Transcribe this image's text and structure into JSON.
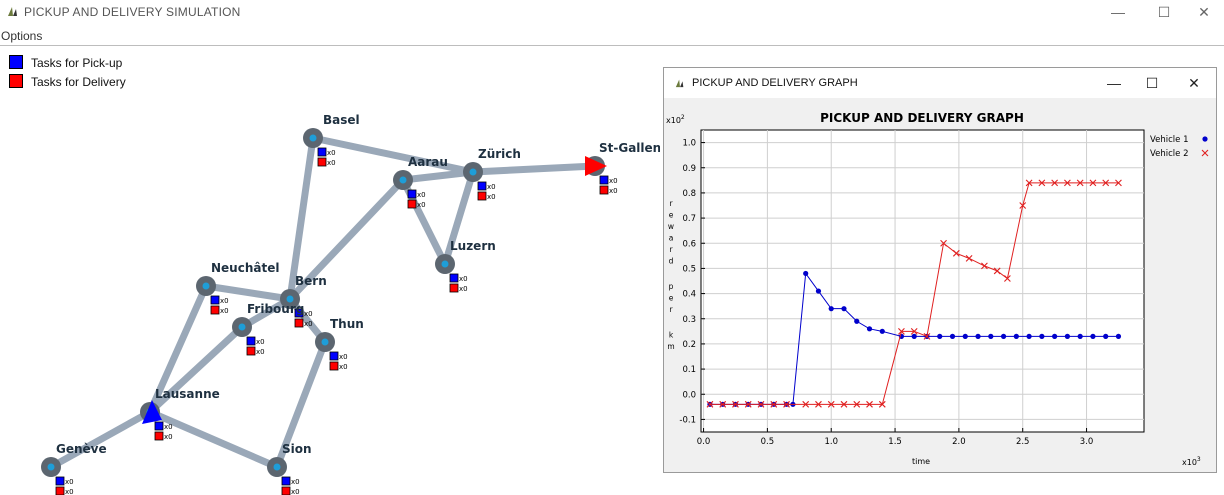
{
  "window": {
    "title": "PICKUP AND DELIVERY SIMULATION",
    "minimize_glyph": "—",
    "maximize_glyph": "☐",
    "close_glyph": "✕"
  },
  "menu": {
    "options_label": "Options"
  },
  "legend": {
    "pickup": {
      "label": "Tasks for Pick-up",
      "color": "#0000ff"
    },
    "delivery": {
      "label": "Tasks for Delivery",
      "color": "#ff0000"
    }
  },
  "map": {
    "colors": {
      "road": "#9aa8b8",
      "node": "#5c6670",
      "node_center": "#1e9ed8",
      "vehicle1": "#0000ff",
      "vehicle2": "#ff0000"
    },
    "cities": [
      {
        "name": "Basel",
        "count_pickup": "x0",
        "count_delivery": "x0"
      },
      {
        "name": "Zürich",
        "count_pickup": "x0",
        "count_delivery": "x0"
      },
      {
        "name": "Aarau",
        "count_pickup": "x0",
        "count_delivery": "x0"
      },
      {
        "name": "St-Gallen",
        "count_pickup": "x0",
        "count_delivery": "x0"
      },
      {
        "name": "Luzern",
        "count_pickup": "x0",
        "count_delivery": "x0"
      },
      {
        "name": "Neuchâtel",
        "count_pickup": "x0",
        "count_delivery": "x0"
      },
      {
        "name": "Bern",
        "count_pickup": "x0",
        "count_delivery": "x0"
      },
      {
        "name": "Fribourg",
        "count_pickup": "x0",
        "count_delivery": "x0"
      },
      {
        "name": "Thun",
        "count_pickup": "x0",
        "count_delivery": "x0"
      },
      {
        "name": "Lausanne",
        "count_pickup": "x0",
        "count_delivery": "x0"
      },
      {
        "name": "Genève",
        "count_pickup": "x0",
        "count_delivery": "x0"
      },
      {
        "name": "Sion",
        "count_pickup": "x0",
        "count_delivery": "x0"
      }
    ],
    "roads": [
      [
        "Basel",
        "Zürich"
      ],
      [
        "Basel",
        "Bern"
      ],
      [
        "Aarau",
        "Zürich"
      ],
      [
        "Aarau",
        "Bern"
      ],
      [
        "Aarau",
        "Luzern"
      ],
      [
        "Zürich",
        "Luzern"
      ],
      [
        "Zürich",
        "St-Gallen"
      ],
      [
        "Neuchâtel",
        "Bern"
      ],
      [
        "Neuchâtel",
        "Lausanne"
      ],
      [
        "Bern",
        "Fribourg"
      ],
      [
        "Bern",
        "Thun"
      ],
      [
        "Fribourg",
        "Lausanne"
      ],
      [
        "Thun",
        "Sion"
      ],
      [
        "Lausanne",
        "Genève"
      ],
      [
        "Lausanne",
        "Sion"
      ]
    ]
  },
  "graph_window": {
    "title": "PICKUP AND DELIVERY GRAPH",
    "minimize_glyph": "—",
    "maximize_glyph": "☐",
    "close_glyph": "✕"
  },
  "chart_data": {
    "type": "line",
    "title": "PICKUP AND DELIVERY GRAPH",
    "xlabel": "time",
    "ylabel": "reward per km",
    "x_multiplier": "x10",
    "x_multiplier_exp": "3",
    "y_multiplier": "x10",
    "y_multiplier_exp": "2",
    "xlim": [
      -0.02,
      3.45
    ],
    "ylim": [
      -0.15,
      1.05
    ],
    "xticks": [
      0.0,
      0.5,
      1.0,
      1.5,
      2.0,
      2.5,
      3.0
    ],
    "xtick_labels": [
      "0.0",
      "0.5",
      "1.0",
      "1.5",
      "2.0",
      "2.5",
      "3.0"
    ],
    "yticks": [
      -0.1,
      0.0,
      0.1,
      0.2,
      0.3,
      0.4,
      0.5,
      0.6,
      0.7,
      0.8,
      0.9,
      1.0
    ],
    "ytick_labels": [
      "-0.1",
      "0.0",
      "0.1",
      "0.2",
      "0.3",
      "0.4",
      "0.5",
      "0.6",
      "0.7",
      "0.8",
      "0.9",
      "1.0"
    ],
    "grid": true,
    "legend_position": "right",
    "series": [
      {
        "name": "Vehicle 1",
        "color": "#0000cc",
        "marker": "dot",
        "points": [
          [
            0.05,
            -0.04
          ],
          [
            0.15,
            -0.04
          ],
          [
            0.25,
            -0.04
          ],
          [
            0.35,
            -0.04
          ],
          [
            0.45,
            -0.04
          ],
          [
            0.55,
            -0.04
          ],
          [
            0.65,
            -0.04
          ],
          [
            0.7,
            -0.04
          ],
          [
            0.8,
            0.48
          ],
          [
            0.9,
            0.41
          ],
          [
            1.0,
            0.34
          ],
          [
            1.1,
            0.34
          ],
          [
            1.2,
            0.29
          ],
          [
            1.3,
            0.26
          ],
          [
            1.4,
            0.25
          ],
          [
            1.55,
            0.23
          ],
          [
            1.65,
            0.23
          ],
          [
            1.75,
            0.23
          ],
          [
            1.85,
            0.23
          ],
          [
            1.95,
            0.23
          ],
          [
            2.05,
            0.23
          ],
          [
            2.15,
            0.23
          ],
          [
            2.25,
            0.23
          ],
          [
            2.35,
            0.23
          ],
          [
            2.45,
            0.23
          ],
          [
            2.55,
            0.23
          ],
          [
            2.65,
            0.23
          ],
          [
            2.75,
            0.23
          ],
          [
            2.85,
            0.23
          ],
          [
            2.95,
            0.23
          ],
          [
            3.05,
            0.23
          ],
          [
            3.15,
            0.23
          ],
          [
            3.25,
            0.23
          ]
        ]
      },
      {
        "name": "Vehicle 2",
        "color": "#e02020",
        "marker": "x",
        "points": [
          [
            0.05,
            -0.04
          ],
          [
            0.15,
            -0.04
          ],
          [
            0.25,
            -0.04
          ],
          [
            0.35,
            -0.04
          ],
          [
            0.45,
            -0.04
          ],
          [
            0.55,
            -0.04
          ],
          [
            0.65,
            -0.04
          ],
          [
            0.8,
            -0.04
          ],
          [
            0.9,
            -0.04
          ],
          [
            1.0,
            -0.04
          ],
          [
            1.1,
            -0.04
          ],
          [
            1.2,
            -0.04
          ],
          [
            1.3,
            -0.04
          ],
          [
            1.4,
            -0.04
          ],
          [
            1.55,
            0.25
          ],
          [
            1.65,
            0.25
          ],
          [
            1.75,
            0.23
          ],
          [
            1.88,
            0.6
          ],
          [
            1.98,
            0.56
          ],
          [
            2.08,
            0.54
          ],
          [
            2.2,
            0.51
          ],
          [
            2.3,
            0.49
          ],
          [
            2.38,
            0.46
          ],
          [
            2.5,
            0.75
          ],
          [
            2.55,
            0.84
          ],
          [
            2.65,
            0.84
          ],
          [
            2.75,
            0.84
          ],
          [
            2.85,
            0.84
          ],
          [
            2.95,
            0.84
          ],
          [
            3.05,
            0.84
          ],
          [
            3.15,
            0.84
          ],
          [
            3.25,
            0.84
          ]
        ]
      }
    ]
  }
}
